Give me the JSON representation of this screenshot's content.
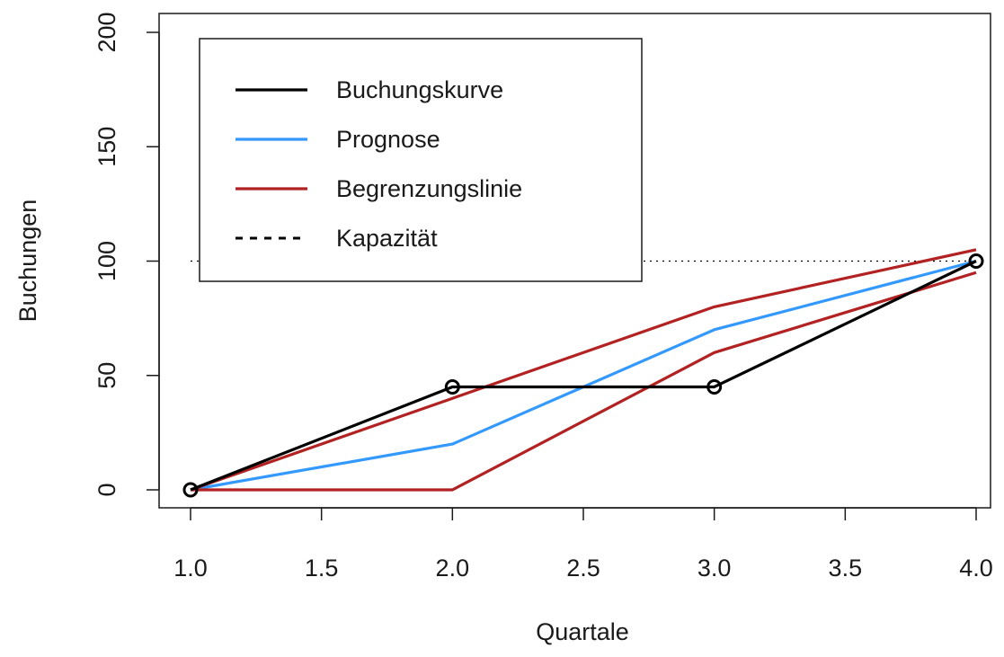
{
  "chart_data": {
    "type": "line",
    "title": "",
    "xlabel": "Quartale",
    "ylabel": "Buchungen",
    "xlim": [
      1.0,
      4.0
    ],
    "ylim": [
      0,
      200
    ],
    "x_ticks": [
      "1.0",
      "1.5",
      "2.0",
      "2.5",
      "3.0",
      "3.5",
      "4.0"
    ],
    "y_ticks": [
      "0",
      "50",
      "100",
      "150",
      "200"
    ],
    "grid": false,
    "legend_position": "top-left",
    "series": [
      {
        "name": "Buchungskurve",
        "color": "#000000",
        "style": "solid",
        "markers": true,
        "x": [
          1,
          2,
          3,
          4
        ],
        "y": [
          0,
          45,
          45,
          100
        ]
      },
      {
        "name": "Prognose",
        "color": "#3399ff",
        "style": "solid",
        "markers": false,
        "x": [
          1,
          2,
          3,
          4
        ],
        "y": [
          0,
          20,
          70,
          100
        ]
      },
      {
        "name": "Begrenzungslinie",
        "color": "#b22222",
        "style": "solid",
        "markers": false,
        "x": [
          1,
          2,
          3,
          4
        ],
        "y": [
          0,
          40,
          80,
          105
        ]
      },
      {
        "name": "",
        "color": "#b22222",
        "style": "solid",
        "markers": false,
        "x": [
          1,
          2,
          3,
          4
        ],
        "y": [
          0,
          0,
          60,
          95
        ]
      },
      {
        "name": "Kapazität",
        "color": "#000000",
        "style": "dotted",
        "markers": false,
        "x": [
          1,
          4
        ],
        "y": [
          100,
          100
        ]
      }
    ]
  }
}
